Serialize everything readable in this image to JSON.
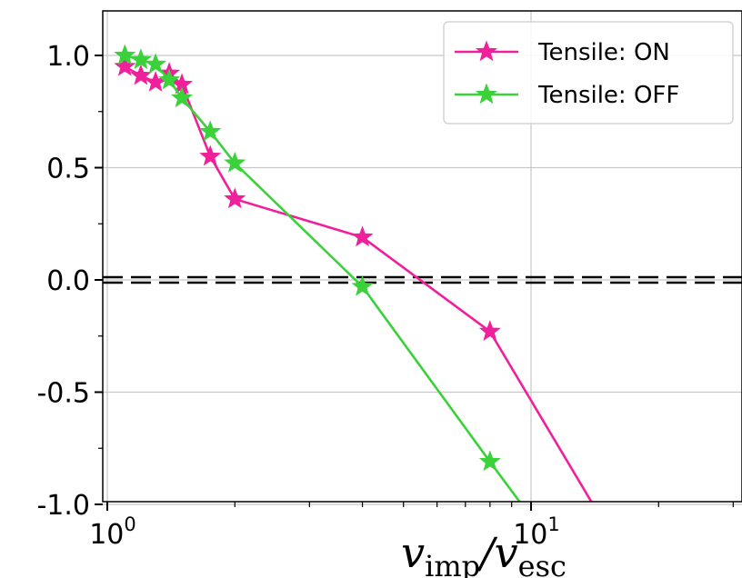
{
  "chart_data": {
    "type": "line",
    "xscale": "log",
    "xlim": [
      1.0,
      30.0
    ],
    "ylim": [
      -1.0,
      1.2
    ],
    "grid": true,
    "legend_position": "top-right",
    "xlabel_main": "v",
    "xlabel_sub_1": "imp",
    "xlabel_slash": "/",
    "xlabel_main_2": "v",
    "xlabel_sub_2": "esc",
    "x_ticks": [
      {
        "value": 1,
        "base": "10",
        "exp": "0"
      },
      {
        "value": 10,
        "base": "10",
        "exp": "1"
      }
    ],
    "y_ticks": [
      {
        "value": 1.0,
        "label": "1.0"
      },
      {
        "value": 0.5,
        "label": "0.5"
      },
      {
        "value": 0.0,
        "label": "0.0"
      },
      {
        "value": -0.5,
        "label": "-0.5"
      },
      {
        "value": -1.0,
        "label": "-1.0"
      }
    ],
    "reference_line": {
      "y": 0.0,
      "style": "dashed",
      "color": "#000000"
    },
    "series": [
      {
        "name": "Tensile: ON",
        "color": "#f0209b",
        "marker": "star",
        "x": [
          1.1,
          1.2,
          1.3,
          1.4,
          1.5,
          1.75,
          2.0,
          4.0,
          8.0,
          14.0
        ],
        "y": [
          0.95,
          0.91,
          0.88,
          0.92,
          0.87,
          0.55,
          0.36,
          0.19,
          -0.23,
          -1.0
        ]
      },
      {
        "name": "Tensile: OFF",
        "color": "#3ad13a",
        "marker": "star",
        "x": [
          1.1,
          1.2,
          1.3,
          1.4,
          1.5,
          1.75,
          2.0,
          4.0,
          8.0,
          9.5
        ],
        "y": [
          1.0,
          0.98,
          0.96,
          0.89,
          0.81,
          0.66,
          0.52,
          -0.03,
          -0.81,
          -1.0
        ]
      }
    ]
  }
}
